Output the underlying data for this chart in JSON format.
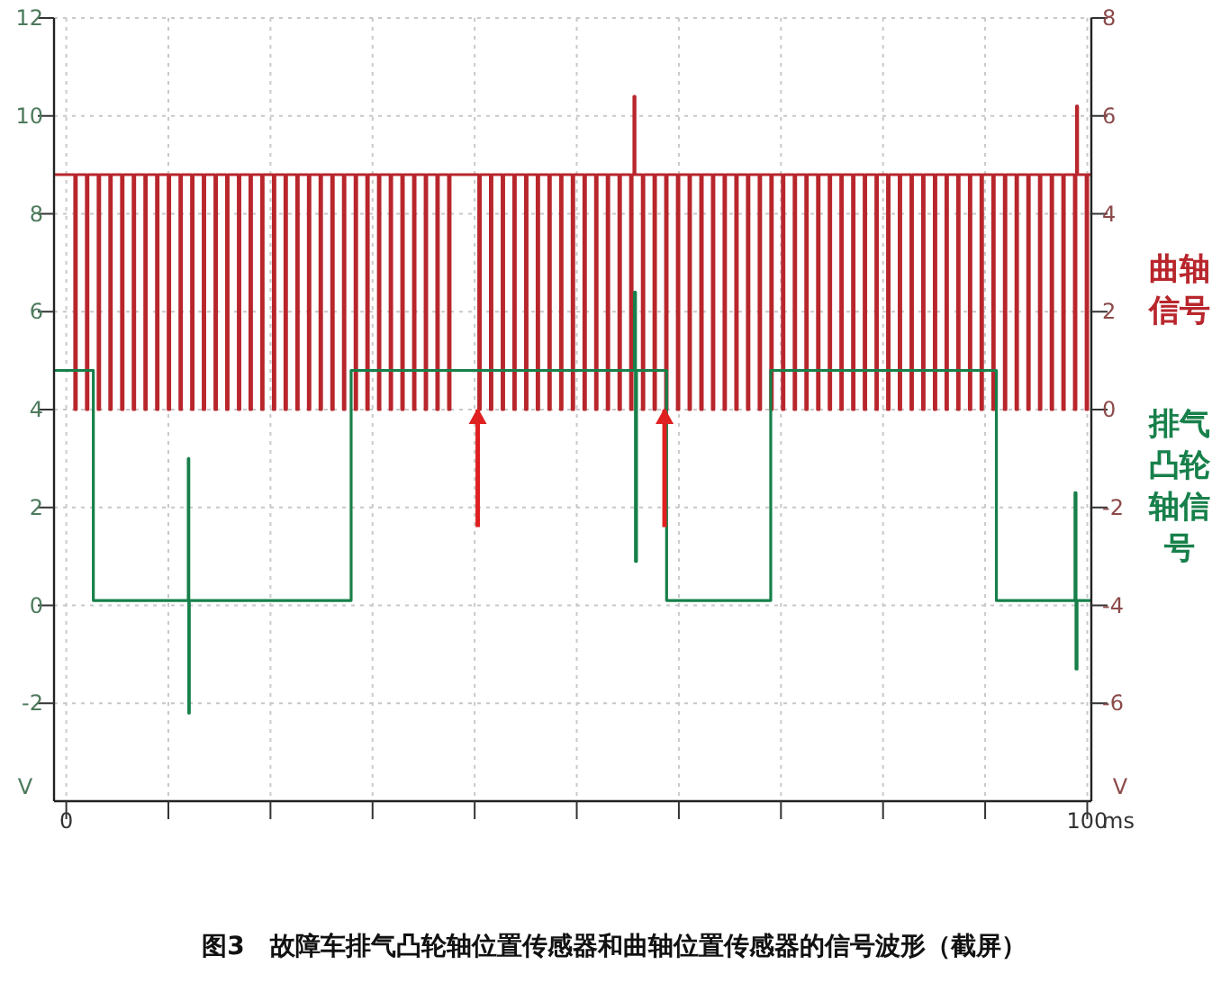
{
  "chart_data": {
    "type": "step",
    "xlim": [
      -1.2,
      100.4
    ],
    "ylim": [
      -4,
      12
    ],
    "y2lim": [
      -8,
      8
    ],
    "xticks": [
      0,
      {
        "value": 10,
        "label": null
      },
      {
        "value": 20,
        "label": null
      },
      {
        "value": 30,
        "label": null
      },
      {
        "value": 40,
        "label": null
      },
      {
        "value": 50,
        "label": null
      },
      {
        "value": 60,
        "label": null
      },
      {
        "value": 70,
        "label": null
      },
      {
        "value": 80,
        "label": null
      },
      {
        "value": 90,
        "label": null
      },
      100
    ],
    "yticks": [
      -2,
      0,
      2,
      4,
      6,
      8,
      10,
      12
    ],
    "y2ticks": [
      -6,
      -4,
      -2,
      0,
      2,
      4,
      6,
      8
    ],
    "xlabel": "ms",
    "ylabel": "V",
    "y2label": "V",
    "grid": true,
    "legend": "right",
    "annotations": [
      "图3　故障车排气凸轮轴位置传感器和曲轴位置传感器的信号波形（截屏）"
    ],
    "series": [
      {
        "name": "曲轴信号",
        "color": "#b8262c",
        "axis": "y2",
        "x": [
          -1.2,
          0.83,
          0.98,
          1.97,
          2.12,
          3.12,
          3.27,
          4.26,
          4.41,
          5.41,
          5.56,
          6.55,
          6.7,
          7.69,
          7.84,
          8.84,
          8.99,
          9.98,
          10.13,
          11.13,
          11.28,
          12.27,
          12.42,
          13.41,
          13.56,
          14.56,
          14.71,
          15.7,
          15.85,
          16.85,
          17.0,
          17.99,
          18.14,
          19.13,
          19.28,
          20.28,
          20.43,
          21.42,
          21.57,
          22.57,
          22.72,
          23.71,
          23.86,
          24.85,
          25.0,
          26.0,
          26.15,
          27.14,
          27.29,
          28.29,
          28.44,
          29.43,
          29.58,
          30.57,
          30.72,
          31.72,
          31.87,
          32.86,
          33.01,
          34.01,
          34.16,
          35.15,
          35.3,
          36.29,
          36.44,
          37.44,
          37.59,
          40.4,
          40.55,
          41.54,
          41.69,
          42.69,
          42.84,
          43.83,
          43.98,
          44.98,
          45.13,
          46.12,
          46.27,
          47.26,
          47.41,
          48.41,
          48.56,
          49.55,
          49.7,
          50.7,
          50.85,
          51.84,
          51.99,
          52.98,
          53.13,
          54.13,
          54.28,
          55.27,
          55.42,
          55.6,
          55.7,
          56.42,
          56.57,
          57.56,
          57.71,
          58.7,
          58.85,
          59.85,
          60.0,
          60.99,
          61.14,
          62.14,
          62.29,
          63.28,
          63.43,
          64.42,
          64.57,
          65.57,
          65.72,
          66.71,
          66.86,
          67.86,
          68.01,
          69.0,
          69.15,
          70.14,
          70.29,
          71.29,
          71.44,
          72.43,
          72.58,
          73.58,
          73.73,
          74.72,
          74.87,
          75.86,
          76.01,
          77.01,
          77.16,
          78.15,
          78.3,
          79.3,
          79.45,
          80.44,
          80.59,
          81.58,
          81.73,
          82.73,
          82.88,
          83.87,
          84.02,
          85.02,
          85.17,
          86.16,
          86.31,
          87.3,
          87.45,
          88.45,
          88.6,
          89.59,
          89.74,
          90.74,
          90.89,
          91.88,
          92.03,
          93.02,
          93.17,
          94.17,
          94.32,
          95.31,
          95.46,
          96.46,
          96.61,
          97.6,
          97.75,
          98.74,
          98.89,
          98.95,
          99.05,
          99.89,
          100.04,
          100.4
        ],
        "values": [
          4.8,
          0,
          4.8,
          0,
          4.8,
          0,
          4.8,
          0,
          4.8,
          0,
          4.8,
          0,
          4.8,
          0,
          4.8,
          0,
          4.8,
          0,
          4.8,
          0,
          4.8,
          0,
          4.8,
          0,
          4.8,
          0,
          4.8,
          0,
          4.8,
          0,
          4.8,
          0,
          4.8,
          0,
          4.8,
          0,
          4.8,
          0,
          4.8,
          0,
          4.8,
          0,
          4.8,
          0,
          4.8,
          0,
          4.8,
          0,
          4.8,
          0,
          4.8,
          0,
          4.8,
          0,
          4.8,
          0,
          4.8,
          0,
          4.8,
          0,
          4.8,
          0,
          4.8,
          0,
          4.8,
          0,
          4.8,
          0,
          4.8,
          0,
          4.8,
          0,
          4.8,
          0,
          4.8,
          0,
          4.8,
          0,
          4.8,
          0,
          4.8,
          0,
          4.8,
          0,
          4.8,
          0,
          4.8,
          0,
          4.8,
          0,
          4.8,
          0,
          4.8,
          0,
          4.8,
          6.4,
          4.8,
          0,
          4.8,
          0,
          4.8,
          0,
          4.8,
          0,
          4.8,
          0,
          4.8,
          0,
          4.8,
          0,
          4.8,
          0,
          4.8,
          0,
          4.8,
          0,
          4.8,
          0,
          4.8,
          0,
          4.8,
          0,
          4.8,
          0,
          4.8,
          0,
          4.8,
          0,
          4.8,
          0,
          4.8,
          0,
          4.8,
          0,
          4.8,
          0,
          4.8,
          0,
          4.8,
          0,
          4.8,
          0,
          4.8,
          0,
          4.8,
          0,
          4.8,
          0,
          4.8,
          0,
          4.8,
          0,
          4.8,
          0,
          4.8,
          0,
          4.8,
          0,
          4.8,
          0,
          4.8,
          0,
          4.8,
          0,
          4.8,
          0,
          4.8,
          0,
          4.8,
          0,
          4.8,
          0,
          4.8,
          6.2,
          4.8,
          0,
          4.8,
          4.8
        ]
      },
      {
        "name": "排气凸轮轴信号",
        "color": "#17804a",
        "axis": "y",
        "x": [
          -1.2,
          2.65,
          11.95,
          12.0,
          12.05,
          27.9,
          55.65,
          55.75,
          55.85,
          58.8,
          69.0,
          91.1,
          98.8,
          98.9,
          99.0,
          100.4
        ],
        "values": [
          4.8,
          0.1,
          3.0,
          -2.2,
          0.1,
          4.8,
          6.4,
          0.9,
          4.8,
          0.1,
          4.8,
          0.1,
          2.3,
          -1.3,
          0.1,
          0.1
        ]
      }
    ]
  }
}
